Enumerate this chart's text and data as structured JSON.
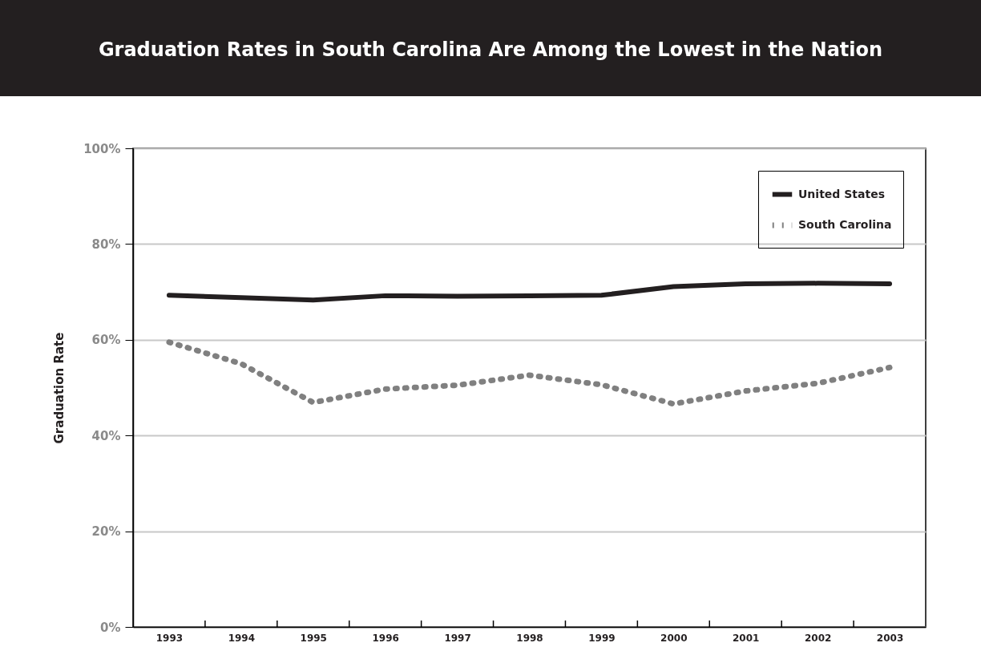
{
  "chart_data": {
    "type": "line",
    "title": "Graduation Rates in South Carolina Are Among the Lowest in the Nation",
    "ylabel": "Graduation Rate",
    "categories": [
      "1993",
      "1994",
      "1995",
      "1996",
      "1997",
      "1998",
      "1999",
      "2000",
      "2001",
      "2002",
      "2003"
    ],
    "series": [
      {
        "name": "United States",
        "color": "#231f20",
        "line_style": "solid",
        "values": [
          69.3,
          68.8,
          68.3,
          69.2,
          69.1,
          69.2,
          69.3,
          71.1,
          71.7,
          71.8,
          71.7
        ]
      },
      {
        "name": "South Carolina",
        "color": "#808080",
        "line_style": "dotted",
        "values": [
          59.5,
          55.0,
          46.9,
          49.7,
          50.5,
          52.6,
          50.6,
          46.6,
          49.3,
          50.9,
          54.2
        ]
      }
    ],
    "ylim": [
      0,
      100
    ],
    "yticks": [
      {
        "value": 0,
        "label": "0%"
      },
      {
        "value": 20,
        "label": "20%"
      },
      {
        "value": 40,
        "label": "40%"
      },
      {
        "value": 60,
        "label": "60%"
      },
      {
        "value": 80,
        "label": "80%"
      },
      {
        "value": 100,
        "label": "100%"
      }
    ],
    "grid": "y",
    "legend": "top right",
    "marker": "none"
  }
}
